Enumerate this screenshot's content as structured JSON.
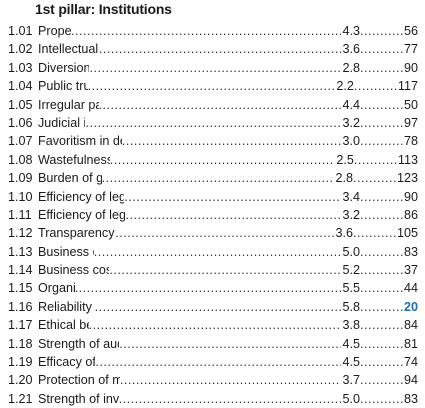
{
  "title": "1st pillar: Institutions",
  "highlight_color": "#1a6fb5",
  "rows": [
    {
      "num": "1.01",
      "label": "Property rights",
      "score": "4.3",
      "rank": "56",
      "highlight": false
    },
    {
      "num": "1.02",
      "label": "Intellectual property protection",
      "score": "3.6",
      "rank": "77",
      "highlight": false
    },
    {
      "num": "1.03",
      "label": "Diversion of public funds",
      "score": "2.8",
      "rank": "90",
      "highlight": false
    },
    {
      "num": "1.04",
      "label": "Public trust in politicians",
      "score": "2.2",
      "rank": "117",
      "highlight": false
    },
    {
      "num": "1.05",
      "label": "Irregular payments and bribes",
      "score": "4.4",
      "rank": "50",
      "highlight": false
    },
    {
      "num": "1.06",
      "label": "Judicial independence",
      "score": "3.2",
      "rank": "97",
      "highlight": false
    },
    {
      "num": "1.07",
      "label": "Favoritism in decisions of government officials",
      "score": "3.0",
      "rank": "78",
      "highlight": false
    },
    {
      "num": "1.08",
      "label": "Wastefulness of government spending",
      "score": "2.5",
      "rank": "113",
      "highlight": false
    },
    {
      "num": "1.09",
      "label": "Burden of government regulation",
      "score": "2.8",
      "rank": "123",
      "highlight": false
    },
    {
      "num": "1.10",
      "label": "Efficiency of legal framework in settling disputes",
      "score": "3.4",
      "rank": "90",
      "highlight": false
    },
    {
      "num": "1.11",
      "label": "Efficiency of legal framework in challenging regs.",
      "score": "3.2",
      "rank": "86",
      "highlight": false
    },
    {
      "num": "1.12",
      "label": "Transparency of government policymaking",
      "score": "3.6",
      "rank": "105",
      "highlight": false
    },
    {
      "num": "1.13",
      "label": "Business costs of terrorism",
      "score": "5.0",
      "rank": "83",
      "highlight": false
    },
    {
      "num": "1.14",
      "label": "Business costs of crime and violence",
      "score": "5.2",
      "rank": "37",
      "highlight": false
    },
    {
      "num": "1.15",
      "label": "Organized crime",
      "score": "5.5",
      "rank": "44",
      "highlight": false
    },
    {
      "num": "1.16",
      "label": "Reliability of police services",
      "score": "5.8",
      "rank": "20",
      "highlight": true
    },
    {
      "num": "1.17",
      "label": "Ethical behavior of firms",
      "score": "3.8",
      "rank": "84",
      "highlight": false
    },
    {
      "num": "1.18",
      "label": "Strength of auditing and reporting standards",
      "score": "4.5",
      "rank": "81",
      "highlight": false
    },
    {
      "num": "1.19",
      "label": "Efficacy of corporate boards",
      "score": "4.5",
      "rank": "74",
      "highlight": false
    },
    {
      "num": "1.20",
      "label": "Protection of minority shareholders' interests",
      "score": "3.7",
      "rank": "94",
      "highlight": false
    },
    {
      "num": "1.21",
      "label": "Strength of investor protection, 0–10 (best)*",
      "score": "5.0",
      "rank": "83",
      "highlight": false
    }
  ]
}
